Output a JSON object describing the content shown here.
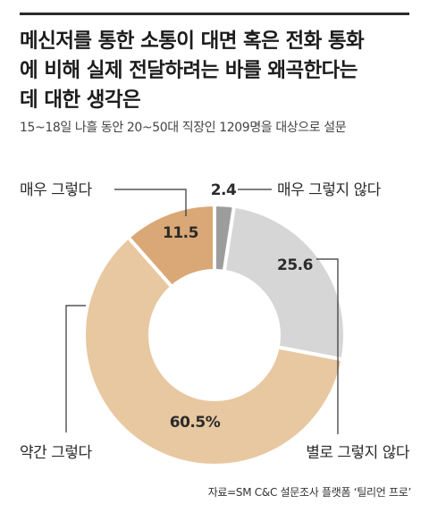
{
  "title_lines": [
    "메신저를 통한 소통이 대면 혹은 전화 통화",
    "에 비해 실제 전달하려는 바를 왜곡한다는",
    "데 대한 생각은"
  ],
  "subtitle": "15~18일 나흘 동안 20~50대 직장인 1209명을 대상으로 설문",
  "source": "자료=SM C&C 설문조사 플랫폼 ‘틸리언 프로’",
  "chart_data": {
    "type": "pie",
    "style": "donut",
    "title": "메신저를 통한 소통이 대면 혹은 전화 통화에 비해 실제 전달하려는 바를 왜곡한다는 데 대한 생각은",
    "slices": [
      {
        "label": "매우 그렇지 않다",
        "value": 2.4,
        "value_text": "2.4",
        "color": "#9d9d9d"
      },
      {
        "label": "별로 그렇지 않다",
        "value": 25.6,
        "value_text": "25.6",
        "color": "#d6d6d6"
      },
      {
        "label": "약간 그렇다",
        "value": 60.5,
        "value_text": "60.5%",
        "color": "#e8c8a0"
      },
      {
        "label": "매우 그렇다",
        "value": 11.5,
        "value_text": "11.5",
        "color": "#d9a876"
      }
    ]
  }
}
